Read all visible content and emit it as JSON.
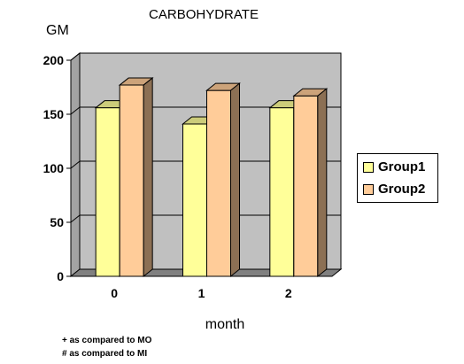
{
  "chart_data": {
    "type": "bar",
    "title": "CARBOHYDRATE",
    "ylabel": "GM",
    "xlabel": "month",
    "categories": [
      "0",
      "1",
      "2"
    ],
    "series": [
      {
        "name": "Group1",
        "values": [
          156,
          141,
          156
        ],
        "color": "#ffff99"
      },
      {
        "name": "Group2",
        "values": [
          177,
          172,
          167
        ],
        "color": "#ffcc99"
      }
    ],
    "ylim": [
      0,
      200
    ],
    "yticks": [
      0,
      50,
      100,
      150,
      200
    ],
    "grid": true,
    "legend": "right",
    "style": "3d-column",
    "wall_color": "#c0c0c0",
    "footnotes": [
      "+ as compared to MO",
      "# as compared to MI"
    ]
  }
}
